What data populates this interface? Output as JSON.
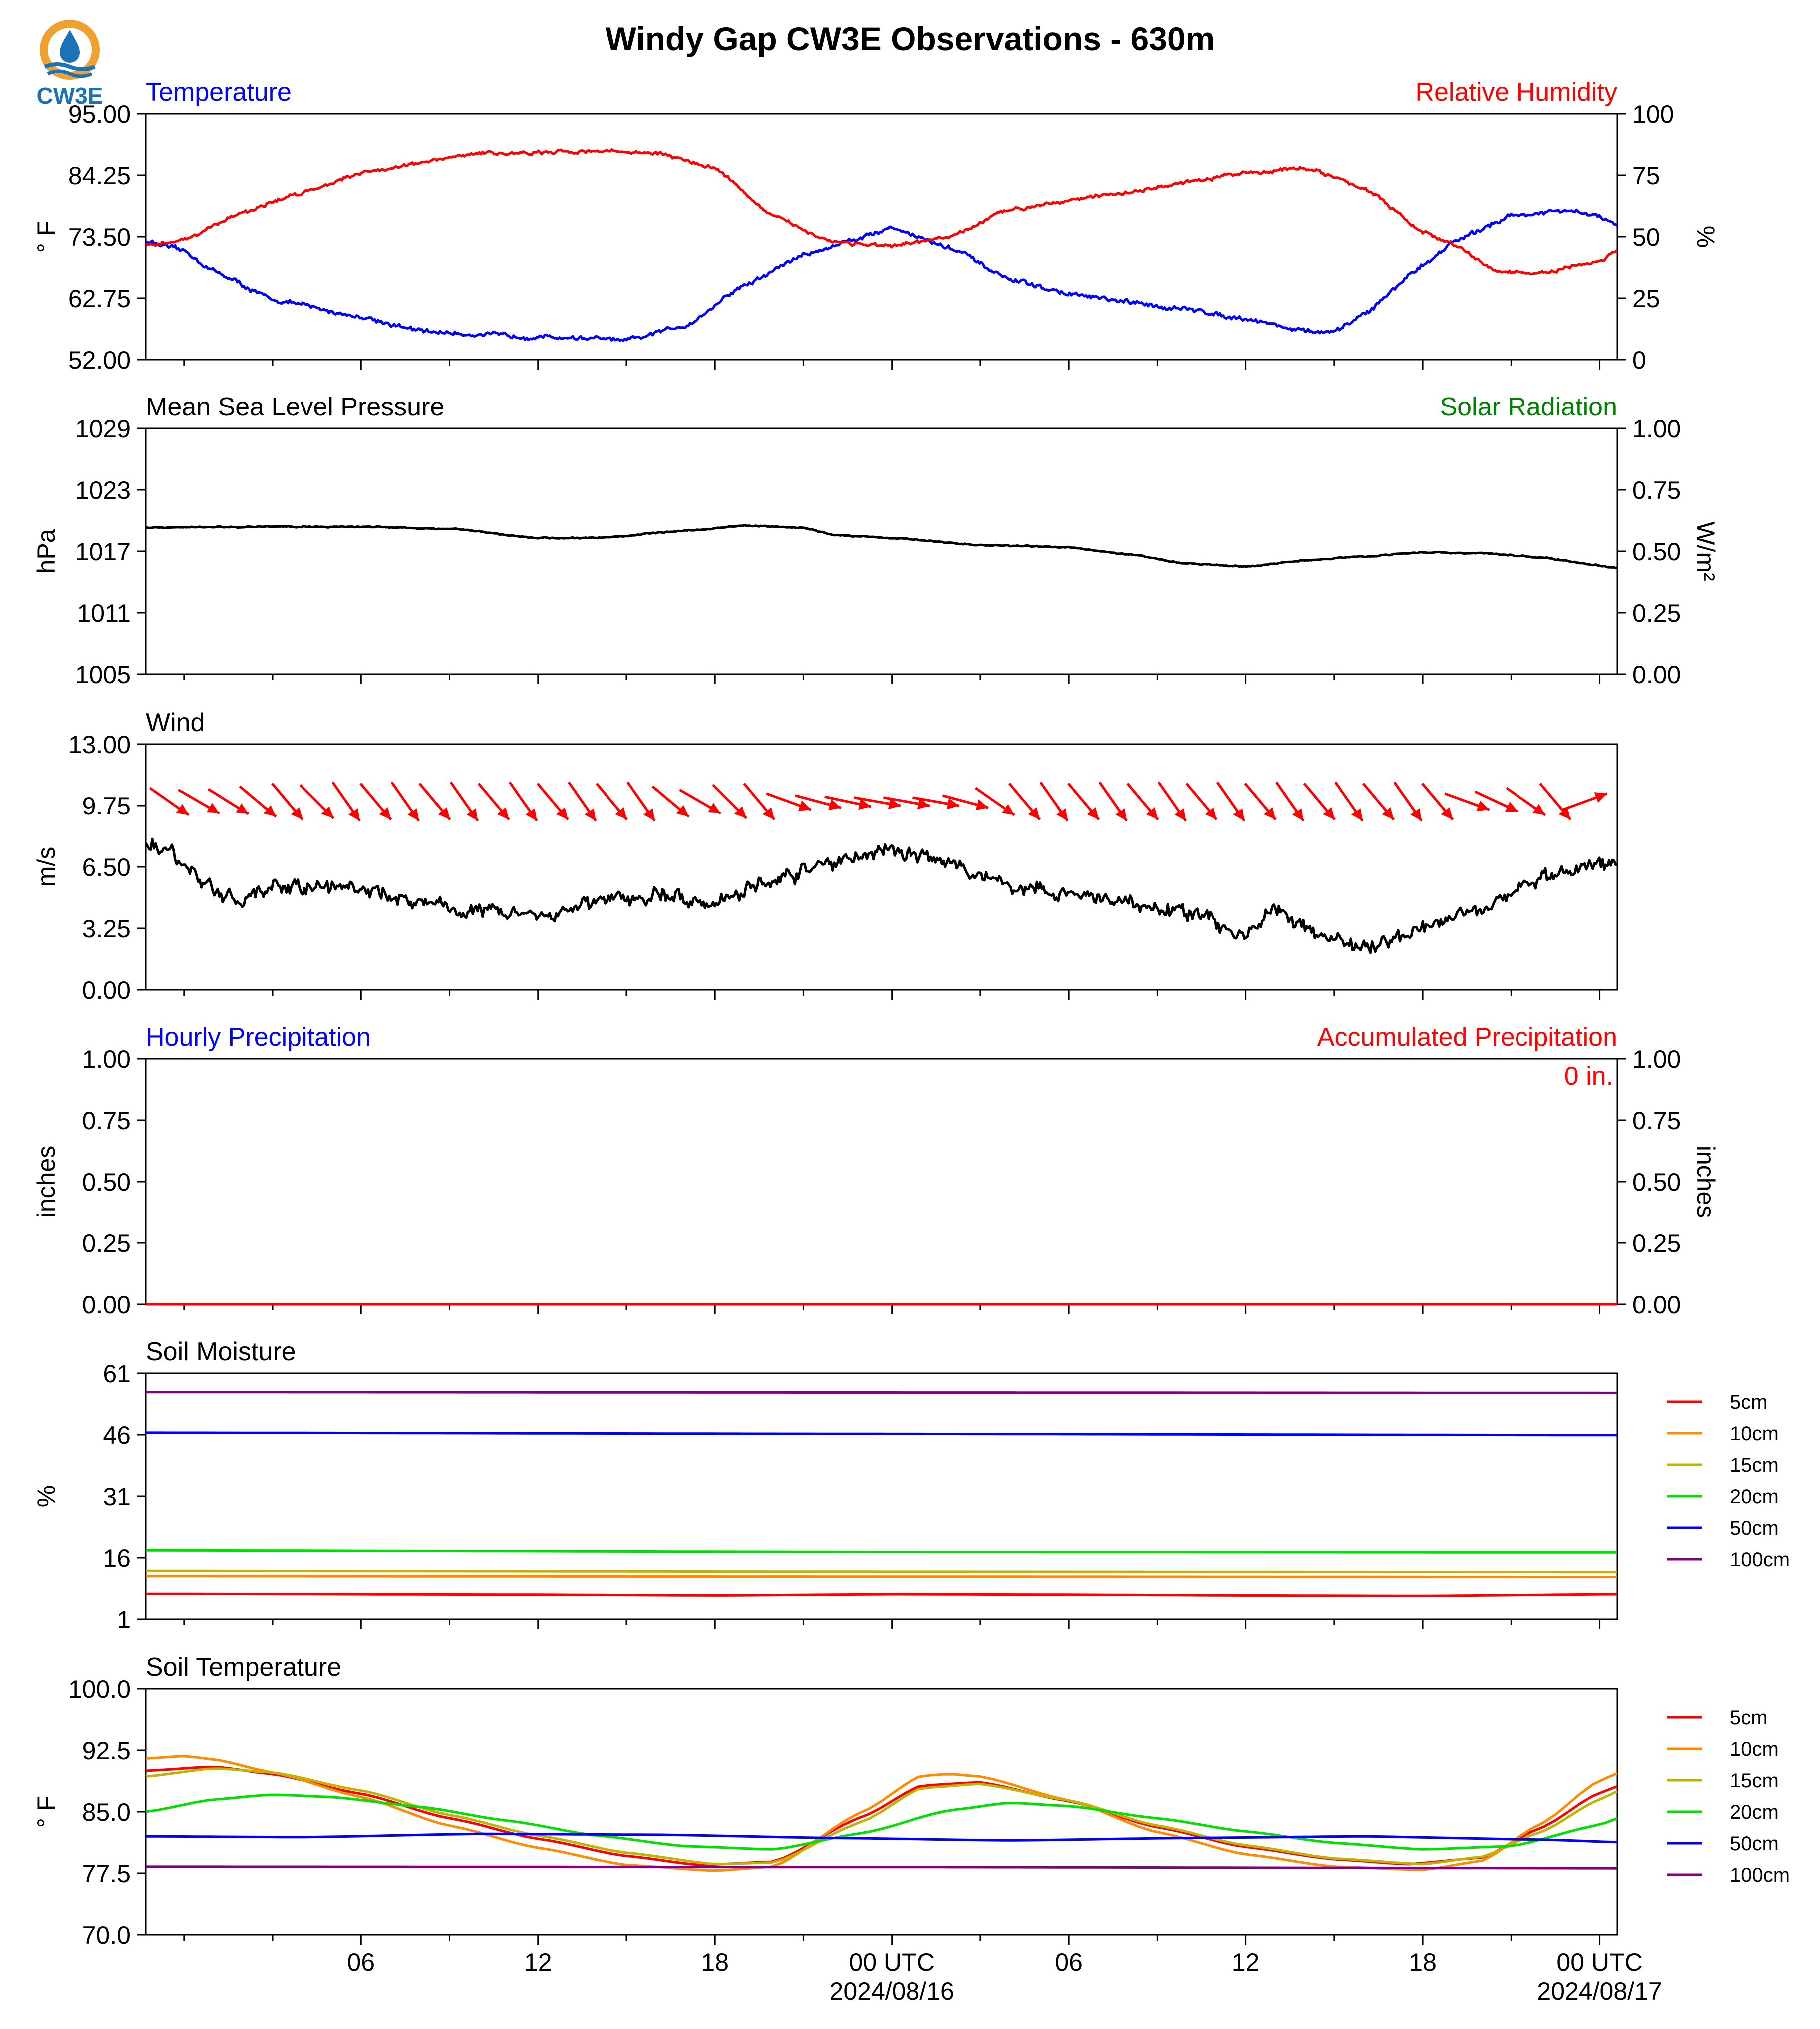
{
  "title": "Windy Gap CW3E Observations - 630m",
  "logo": {
    "text": "CW3E",
    "icon": "cw3e-drop-icon",
    "colors": {
      "ring": "#f0a030",
      "drop": "#1a73b8",
      "waves": "#1a73b8"
    }
  },
  "x_axis": {
    "range_hours": [
      -49.3,
      0.6
    ],
    "tick_labels": [
      {
        "hour": -42,
        "line1": "06",
        "line2": ""
      },
      {
        "hour": -36,
        "line1": "12",
        "line2": ""
      },
      {
        "hour": -30,
        "line1": "18",
        "line2": ""
      },
      {
        "hour": -24,
        "line1": "00 UTC",
        "line2": "2024/08/16"
      },
      {
        "hour": -18,
        "line1": "06",
        "line2": ""
      },
      {
        "hour": -12,
        "line1": "12",
        "line2": ""
      },
      {
        "hour": -6,
        "line1": "18",
        "line2": ""
      },
      {
        "hour": 0,
        "line1": "00 UTC",
        "line2": "2024/08/17"
      }
    ]
  },
  "chart_data": [
    {
      "id": "temp",
      "type": "line",
      "title_left": "Temperature",
      "title_left_color": "#0000ff",
      "title_right": "Relative Humidity",
      "title_right_color": "#ff0000",
      "ylabel_left": "° F",
      "ylabel_right": "%",
      "ylim_left": [
        52,
        95
      ],
      "ylim_right": [
        0,
        100
      ],
      "yticks_left": [
        "95.00",
        "84.25",
        "73.50",
        "62.75",
        "52.00"
      ],
      "yticks_right": [
        "100",
        "75",
        "50",
        "25",
        "0"
      ],
      "series": [
        {
          "name": "Temperature",
          "axis": "left",
          "color": "#0000ff",
          "noise": 0.5,
          "x": [
            -49.3,
            -48,
            -47,
            -45,
            -42,
            -40,
            -38,
            -36,
            -34,
            -33,
            -31,
            -29,
            -27,
            -25,
            -24,
            -22,
            -20,
            -18,
            -16,
            -14,
            -12,
            -10,
            -9,
            -8,
            -6,
            -5,
            -3,
            -1,
            0,
            0.6
          ],
          "y": [
            72.7,
            71,
            67.5,
            62.5,
            59.5,
            57,
            56.4,
            56,
            55.7,
            55.3,
            58,
            65,
            70.3,
            73.5,
            75.1,
            71.5,
            66,
            63.5,
            62,
            60.8,
            59.2,
            57,
            56.7,
            60,
            68.5,
            72.5,
            77.2,
            78,
            77,
            75.3
          ]
        },
        {
          "name": "Relative Humidity",
          "axis": "right",
          "color": "#ff0000",
          "noise": 0.9,
          "x": [
            -49.3,
            -48,
            -46,
            -44,
            -42,
            -40,
            -38,
            -36,
            -34,
            -32,
            -30,
            -28,
            -26,
            -24,
            -22,
            -20,
            -18,
            -16,
            -14,
            -12,
            -10,
            -8,
            -6,
            -5,
            -3.5,
            -2,
            0,
            0.6
          ],
          "y": [
            46,
            49,
            60,
            68,
            76,
            80,
            84,
            84,
            85,
            84,
            78,
            58,
            48,
            46,
            50,
            61,
            65,
            68,
            72,
            76,
            78,
            70,
            52,
            47,
            36,
            35,
            40,
            44
          ]
        }
      ]
    },
    {
      "id": "pres",
      "type": "line",
      "title_left": "Mean Sea Level Pressure",
      "title_left_color": "#000000",
      "title_right": "Solar Radiation",
      "title_right_color": "#008000",
      "ylabel_left": "hPa",
      "ylabel_right": "W/m²",
      "ylim_left": [
        1005,
        1029
      ],
      "ylim_right": [
        0,
        1
      ],
      "yticks_left": [
        "1029",
        "1023",
        "1017",
        "1011",
        "1005"
      ],
      "yticks_right": [
        "1.00",
        "0.75",
        "0.50",
        "0.25",
        "0.00"
      ],
      "series": [
        {
          "name": "Mean Sea Level Pressure",
          "axis": "left",
          "color": "#000000",
          "noise": 0.07,
          "x": [
            -49.3,
            -45,
            -42,
            -39,
            -36,
            -34,
            -31,
            -29,
            -27,
            -26,
            -24,
            -21,
            -18,
            -16,
            -14,
            -12,
            -10,
            -8,
            -6,
            -4,
            -2,
            0,
            0.6
          ],
          "y": [
            1019.3,
            1019.4,
            1019.4,
            1019.2,
            1018.3,
            1018.3,
            1019,
            1019.5,
            1019.3,
            1018.6,
            1018.3,
            1017.6,
            1017.4,
            1016.7,
            1015.8,
            1015.5,
            1016.1,
            1016.5,
            1016.9,
            1016.8,
            1016.4,
            1015.6,
            1015.4
          ]
        }
      ]
    },
    {
      "id": "wind",
      "type": "line",
      "title_left": "Wind",
      "title_left_color": "#000000",
      "ylabel_left": "m/s",
      "ylim_left": [
        0,
        13
      ],
      "yticks_left": [
        "13.00",
        "9.75",
        "6.50",
        "3.25",
        "0.00"
      ],
      "series": [
        {
          "name": "Wind",
          "axis": "left",
          "color": "#000000",
          "noise": 0.5,
          "x": [
            -49.3,
            -48.5,
            -47,
            -46,
            -44,
            -42,
            -40,
            -38,
            -36,
            -34,
            -32,
            -30,
            -28,
            -26,
            -24,
            -22,
            -20,
            -18,
            -16,
            -14,
            -13,
            -12,
            -11,
            -10,
            -9,
            -8,
            -6,
            -4,
            -2,
            0,
            0.6
          ],
          "y": [
            7.8,
            7.2,
            5.3,
            4.8,
            5.5,
            5.4,
            4.6,
            4.2,
            4.0,
            4.6,
            5.0,
            4.7,
            5.8,
            6.7,
            7.5,
            6.7,
            5.5,
            5.0,
            4.6,
            4.1,
            3.5,
            2.8,
            4.5,
            3.3,
            2.5,
            2.2,
            3.4,
            4.5,
            5.8,
            6.7,
            7.0
          ]
        }
      ],
      "barbs": {
        "color": "#ff0000",
        "hours": [
          -48.5,
          -47.5,
          -46.5,
          -45.5,
          -44.5,
          -43.5,
          -42.5,
          -41.5,
          -40.5,
          -39.5,
          -38.5,
          -37.5,
          -36.5,
          -35.5,
          -34.5,
          -33.5,
          -32.5,
          -31.5,
          -30.5,
          -29.5,
          -28.5,
          -27.5,
          -26.5,
          -25.5,
          -24.5,
          -23.5,
          -22.5,
          -21.5,
          -20.5,
          -19.5,
          -18.5,
          -17.5,
          -16.5,
          -15.5,
          -14.5,
          -13.5,
          -12.5,
          -11.5,
          -10.5,
          -9.5,
          -8.5,
          -7.5,
          -6.5,
          -5.5,
          -4.5,
          -3.5,
          -2.5,
          -1.5,
          -0.5
        ],
        "angles_deg": [
          35,
          30,
          32,
          40,
          50,
          45,
          55,
          50,
          55,
          50,
          55,
          50,
          55,
          50,
          55,
          50,
          55,
          40,
          30,
          45,
          50,
          20,
          15,
          12,
          10,
          10,
          10,
          15,
          35,
          50,
          55,
          50,
          55,
          50,
          55,
          50,
          55,
          50,
          55,
          50,
          55,
          50,
          55,
          50,
          20,
          25,
          35,
          50,
          -20
        ]
      }
    },
    {
      "id": "precip",
      "type": "line",
      "title_left": "Hourly Precipitation",
      "title_left_color": "#0000ff",
      "title_right": "Accumulated Precipitation",
      "title_right_color": "#ff0000",
      "annotation": "0 in.",
      "ylabel_left": "inches",
      "ylabel_right": "inches",
      "ylim_left": [
        0,
        1
      ],
      "ylim_right": [
        0,
        1
      ],
      "yticks_left": [
        "1.00",
        "0.75",
        "0.50",
        "0.25",
        "0.00"
      ],
      "yticks_right": [
        "1.00",
        "0.75",
        "0.50",
        "0.25",
        "0.00"
      ],
      "series": [
        {
          "name": "Accumulated Precipitation",
          "axis": "left",
          "color": "#ff0000",
          "noise": 0,
          "x": [
            -49.3,
            0.6
          ],
          "y": [
            0,
            0
          ]
        }
      ]
    },
    {
      "id": "soilm",
      "type": "line",
      "title_left": "Soil Moisture",
      "title_left_color": "#000000",
      "ylabel_left": "%",
      "ylim_left": [
        1,
        61
      ],
      "yticks_left": [
        "61",
        "46",
        "31",
        "16",
        "1"
      ],
      "legend": "right",
      "series": [
        {
          "name": "5cm",
          "axis": "left",
          "color": "#ff0000",
          "noise": 0,
          "x": [
            -49.3,
            -36,
            -30,
            -24,
            -18,
            -12,
            -6,
            0.6
          ],
          "y": [
            7.2,
            7.0,
            6.8,
            7.1,
            7.0,
            6.8,
            6.7,
            7.1
          ]
        },
        {
          "name": "10cm",
          "axis": "left",
          "color": "#ff8c00",
          "noise": 0,
          "x": [
            -49.3,
            -24,
            0.6
          ],
          "y": [
            11.5,
            11.4,
            11.3
          ]
        },
        {
          "name": "15cm",
          "axis": "left",
          "color": "#c0b400",
          "noise": 0,
          "x": [
            -49.3,
            -24,
            0.6
          ],
          "y": [
            12.8,
            12.6,
            12.5
          ]
        },
        {
          "name": "20cm",
          "axis": "left",
          "color": "#00e000",
          "noise": 0,
          "x": [
            -49.3,
            -24,
            0.6
          ],
          "y": [
            17.8,
            17.4,
            17.3
          ]
        },
        {
          "name": "50cm",
          "axis": "left",
          "color": "#0000ff",
          "noise": 0,
          "x": [
            -49.3,
            -24,
            0.6
          ],
          "y": [
            46.5,
            46.2,
            45.9
          ]
        },
        {
          "name": "100cm",
          "axis": "left",
          "color": "#800080",
          "noise": 0,
          "x": [
            -49.3,
            -24,
            0.6
          ],
          "y": [
            56.4,
            56.3,
            56.2
          ]
        }
      ]
    },
    {
      "id": "soilt",
      "type": "line",
      "title_left": "Soil Temperature",
      "title_left_color": "#000000",
      "ylabel_left": "° F",
      "ylim_left": [
        70,
        100
      ],
      "yticks_left": [
        "100.0",
        "92.5",
        "85.0",
        "77.5",
        "70.0"
      ],
      "legend": "right",
      "series": [
        {
          "name": "5cm",
          "axis": "left",
          "color": "#ff0000",
          "noise": 0,
          "x": [
            -49.3,
            -47,
            -45,
            -42,
            -39,
            -36,
            -33,
            -30.5,
            -28,
            -25,
            -23,
            -21,
            -18,
            -15,
            -12,
            -9,
            -6.5,
            -4,
            -2,
            0,
            0.6
          ],
          "y": [
            90,
            90.5,
            89.6,
            87.2,
            84.2,
            81.7,
            79.6,
            78.5,
            78.9,
            84.4,
            88.2,
            88.6,
            86.3,
            83.1,
            80.7,
            79.2,
            78.6,
            79.4,
            83,
            87.3,
            88.1
          ]
        },
        {
          "name": "10cm",
          "axis": "left",
          "color": "#ff8c00",
          "noise": 0,
          "x": [
            -49.3,
            -48,
            -47,
            -45,
            -42,
            -39,
            -36,
            -33,
            -30,
            -28,
            -25,
            -23,
            -22,
            -21,
            -18,
            -15,
            -12,
            -9,
            -6,
            -4,
            -2,
            0,
            0.6
          ],
          "y": [
            91.5,
            91.8,
            91.4,
            89.8,
            86.8,
            83.3,
            80.6,
            78.5,
            77.8,
            78.3,
            85,
            89.4,
            89.6,
            89.3,
            86.4,
            82.5,
            79.8,
            78.3,
            77.9,
            79,
            83.5,
            88.8,
            89.7
          ]
        },
        {
          "name": "15cm",
          "axis": "left",
          "color": "#c0b400",
          "noise": 0,
          "x": [
            -49.3,
            -47,
            -45,
            -42,
            -39,
            -36,
            -33,
            -30,
            -28,
            -25,
            -23,
            -21,
            -18,
            -15,
            -12,
            -9,
            -6,
            -4,
            -2,
            0,
            0.6
          ],
          "y": [
            89.3,
            90.3,
            89.8,
            87.6,
            84.6,
            82.1,
            80,
            78.6,
            78.8,
            83.8,
            87.9,
            88.4,
            86.4,
            83.3,
            80.9,
            79.3,
            78.6,
            79.5,
            82.5,
            86.5,
            87.5
          ]
        },
        {
          "name": "20cm",
          "axis": "left",
          "color": "#00e000",
          "noise": 0,
          "x": [
            -49.3,
            -47,
            -45,
            -43,
            -40,
            -37,
            -34,
            -31,
            -28,
            -25,
            -22,
            -20,
            -18,
            -15,
            -12,
            -9,
            -6,
            -3,
            0,
            0.6
          ],
          "y": [
            85,
            86.5,
            87.1,
            86.8,
            85.6,
            83.9,
            82.1,
            80.8,
            80.4,
            82.4,
            85.2,
            86.1,
            85.7,
            84.2,
            82.6,
            81.2,
            80.4,
            80.8,
            83.4,
            84.2
          ]
        },
        {
          "name": "50cm",
          "axis": "left",
          "color": "#0000ff",
          "noise": 0,
          "x": [
            -49.3,
            -44,
            -38,
            -32,
            -26,
            -20,
            -14,
            -8,
            -2,
            0.6
          ],
          "y": [
            82,
            81.9,
            82.3,
            82.2,
            81.8,
            81.5,
            81.8,
            82,
            81.6,
            81.3
          ]
        },
        {
          "name": "100cm",
          "axis": "left",
          "color": "#800080",
          "noise": 0,
          "x": [
            -49.3,
            -24,
            0.6
          ],
          "y": [
            78.3,
            78.25,
            78.1
          ]
        }
      ]
    }
  ]
}
